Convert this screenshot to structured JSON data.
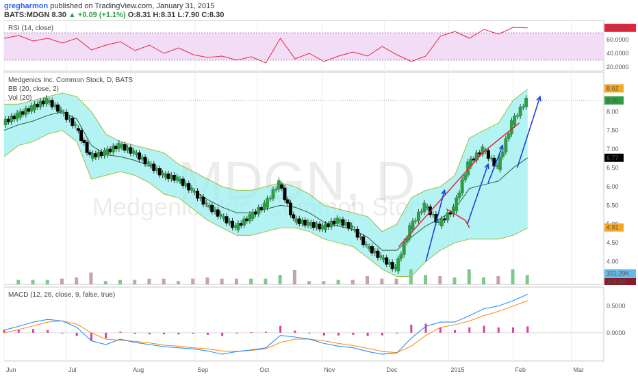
{
  "header": {
    "author": "gregharmon",
    "published": "published on TradingView.com, January 31, 2015",
    "ticker": "BATS:MDGN",
    "last": "8.30",
    "change": "+0.09 (+1.1%)",
    "ohlc": "O:8.31 H:8.31 L:7.90 C:8.30"
  },
  "watermark": {
    "symbol": "MDGN, D",
    "name": "Medgenics Inc. Common Stock"
  },
  "colors": {
    "up": "#2e9e44",
    "down": "#000000",
    "band_fill": "#9befef",
    "band_line": "#9bbf3a",
    "basis": "#2a5a3a",
    "rsi": "#e3243b",
    "rsi_bg": "#f3dcf5",
    "macd": "#1e90ff",
    "signal": "#ff8c1a",
    "hist": "#d63fa7",
    "trend_red": "#e3243b",
    "trend_blue": "#1d3fd9"
  },
  "chart_data": [
    {
      "type": "line",
      "panel": "RSI",
      "title": "RSI (14, close)",
      "ylim": [
        20,
        80
      ],
      "ticks": [
        "60.0000",
        "40.0000",
        "20.0000"
      ],
      "tick_values": [
        60,
        40,
        20
      ],
      "bands": [
        30,
        70
      ],
      "last_label": "77.2412",
      "last_value": 77.24,
      "x_days": [
        0,
        7,
        14,
        21,
        28,
        35,
        42,
        49,
        56,
        63,
        70,
        77,
        84,
        91,
        98,
        105,
        112,
        119,
        126,
        133,
        140,
        147,
        154,
        161,
        168,
        175,
        182,
        189,
        196,
        203,
        210,
        217,
        224,
        231,
        238,
        245,
        252
      ],
      "values": [
        62,
        66,
        58,
        62,
        55,
        62,
        45,
        52,
        57,
        44,
        52,
        40,
        48,
        38,
        34,
        36,
        30,
        35,
        26,
        62,
        32,
        40,
        28,
        36,
        42,
        36,
        50,
        38,
        28,
        36,
        65,
        72,
        62,
        75,
        68,
        78,
        77.24
      ]
    },
    {
      "type": "candlestick",
      "panel": "price",
      "title": "Medgenics Inc. Common Stock, D, BATS",
      "indicator_bb": "BB (20, close, 2)",
      "indicator_vol": "Vol (20)",
      "ylim": [
        3.5,
        8.9
      ],
      "ticks": [
        "8.00",
        "7.50",
        "7.00",
        "6.50",
        "6.00",
        "5.50",
        "5.00",
        "4.50",
        "4.00",
        "3.50"
      ],
      "tick_values": [
        8.0,
        7.5,
        7.0,
        6.5,
        6.0,
        5.5,
        5.0,
        4.5,
        4.0,
        3.5
      ],
      "price_tags": [
        {
          "label": "8.62",
          "value": 8.62,
          "color": "#f5a623"
        },
        {
          "label": "8.30",
          "value": 8.3,
          "color": "#2e9e44"
        },
        {
          "label": "6.77",
          "value": 6.77,
          "color": "#000000"
        },
        {
          "label": "4.91",
          "value": 4.91,
          "color": "#f5a623"
        }
      ],
      "close_x_days": [
        0,
        7,
        14,
        21,
        28,
        35,
        42,
        49,
        56,
        63,
        70,
        77,
        84,
        91,
        98,
        105,
        112,
        119,
        126,
        133,
        140,
        147,
        154,
        161,
        168,
        175,
        182,
        189,
        196,
        203,
        210,
        217,
        224,
        231,
        238,
        245,
        252
      ],
      "closes": [
        7.7,
        7.9,
        8.1,
        8.3,
        8.0,
        7.6,
        6.8,
        6.9,
        7.1,
        6.9,
        6.6,
        6.3,
        6.2,
        5.9,
        5.5,
        5.2,
        4.9,
        5.2,
        5.5,
        6.1,
        5.1,
        5.0,
        4.9,
        5.1,
        4.9,
        4.4,
        4.1,
        3.8,
        4.9,
        5.5,
        5.0,
        5.4,
        6.6,
        7.0,
        6.5,
        7.7,
        8.3
      ],
      "bb_upper": [
        8.2,
        8.2,
        8.3,
        8.4,
        8.5,
        8.4,
        8.0,
        7.4,
        7.2,
        7.1,
        7.0,
        6.9,
        6.6,
        6.4,
        6.2,
        6.0,
        5.9,
        5.9,
        6.0,
        6.1,
        6.0,
        5.8,
        5.5,
        5.4,
        5.3,
        5.2,
        4.8,
        5.0,
        5.7,
        5.9,
        6.0,
        6.3,
        7.3,
        7.5,
        7.7,
        8.3,
        8.6
      ],
      "bb_lower": [
        6.8,
        7.1,
        7.2,
        7.4,
        7.5,
        7.2,
        6.2,
        6.3,
        6.4,
        6.3,
        6.1,
        5.8,
        5.7,
        5.4,
        5.1,
        4.9,
        4.7,
        4.7,
        4.8,
        4.9,
        4.9,
        4.8,
        4.6,
        4.5,
        4.4,
        4.1,
        3.8,
        3.6,
        3.6,
        4.0,
        4.3,
        4.5,
        4.6,
        4.6,
        4.6,
        4.7,
        4.9
      ],
      "bb_basis": [
        7.5,
        7.65,
        7.75,
        7.9,
        8.0,
        7.8,
        7.1,
        6.85,
        6.8,
        6.7,
        6.55,
        6.35,
        6.15,
        5.9,
        5.65,
        5.45,
        5.3,
        5.3,
        5.4,
        5.5,
        5.45,
        5.3,
        5.05,
        4.95,
        4.85,
        4.65,
        4.3,
        4.3,
        4.65,
        4.95,
        5.15,
        5.4,
        5.95,
        6.05,
        6.15,
        6.5,
        6.77
      ],
      "volume_label": "151.29K",
      "volume_avg_label": "104.1K",
      "trendlines": [
        {
          "color": "red",
          "from": [
            190,
            4.4
          ],
          "to": [
            232,
            7.0
          ]
        },
        {
          "color": "red",
          "from": [
            228,
            6.8
          ],
          "to": [
            248,
            7.7
          ]
        },
        {
          "color": "red",
          "from": [
            213,
            5.4
          ],
          "to": [
            222,
            5.1
          ]
        },
        {
          "color": "red",
          "from": [
            222,
            5.1
          ],
          "to": [
            224,
            4.9
          ]
        }
      ],
      "arrows": [
        {
          "from": [
            203,
            4.0
          ],
          "to": [
            212,
            5.9
          ]
        },
        {
          "from": [
            223,
            5.0
          ],
          "to": [
            233,
            6.6
          ]
        },
        {
          "from": [
            233,
            6.1
          ],
          "to": [
            240,
            7.1
          ]
        },
        {
          "from": [
            247,
            6.5
          ],
          "to": [
            258,
            8.4
          ]
        }
      ]
    },
    {
      "type": "line",
      "panel": "MACD",
      "title": "MACD (12, 26, close, 9, false, true)",
      "ylim": [
        -0.45,
        0.75
      ],
      "ticks": [
        "0.5000",
        "0.0000"
      ],
      "tick_values": [
        0.5,
        0.0
      ],
      "x_days": [
        0,
        7,
        14,
        21,
        28,
        35,
        42,
        49,
        56,
        63,
        70,
        77,
        84,
        91,
        98,
        105,
        112,
        119,
        126,
        133,
        140,
        147,
        154,
        161,
        168,
        175,
        182,
        189,
        196,
        203,
        210,
        217,
        224,
        231,
        238,
        245,
        252
      ],
      "series": [
        {
          "role": "macd",
          "values": [
            0.05,
            0.12,
            0.2,
            0.25,
            0.22,
            0.1,
            -0.15,
            -0.22,
            -0.12,
            -0.18,
            -0.22,
            -0.26,
            -0.28,
            -0.3,
            -0.34,
            -0.4,
            -0.35,
            -0.32,
            -0.28,
            -0.05,
            -0.08,
            -0.12,
            -0.2,
            -0.25,
            -0.28,
            -0.35,
            -0.4,
            -0.38,
            -0.1,
            0.12,
            0.2,
            0.2,
            0.32,
            0.45,
            0.5,
            0.6,
            0.72
          ]
        },
        {
          "role": "signal",
          "values": [
            0.0,
            0.06,
            0.13,
            0.2,
            0.22,
            0.16,
            0.0,
            -0.12,
            -0.14,
            -0.16,
            -0.19,
            -0.23,
            -0.25,
            -0.28,
            -0.3,
            -0.34,
            -0.35,
            -0.33,
            -0.3,
            -0.18,
            -0.12,
            -0.12,
            -0.15,
            -0.2,
            -0.24,
            -0.29,
            -0.35,
            -0.37,
            -0.25,
            -0.05,
            0.1,
            0.15,
            0.22,
            0.32,
            0.4,
            0.5,
            0.6
          ]
        }
      ],
      "histogram": [
        0.05,
        0.06,
        0.07,
        0.05,
        0.0,
        -0.06,
        -0.15,
        -0.1,
        0.02,
        -0.02,
        -0.03,
        -0.03,
        -0.03,
        -0.02,
        -0.04,
        -0.06,
        0.0,
        0.01,
        0.02,
        0.13,
        0.04,
        0.0,
        -0.05,
        -0.05,
        -0.04,
        -0.06,
        -0.05,
        -0.01,
        0.15,
        0.17,
        0.1,
        0.05,
        0.1,
        0.13,
        0.1,
        0.1,
        0.12
      ]
    }
  ],
  "x_axis": {
    "labels": [
      "Jun",
      "Jul",
      "Aug",
      "Sep",
      "Oct",
      "Nov",
      "Dec",
      "2015",
      "Feb",
      "Mar"
    ],
    "day_offsets": [
      0,
      30,
      61,
      92,
      122,
      153,
      183,
      214,
      245,
      273
    ]
  }
}
